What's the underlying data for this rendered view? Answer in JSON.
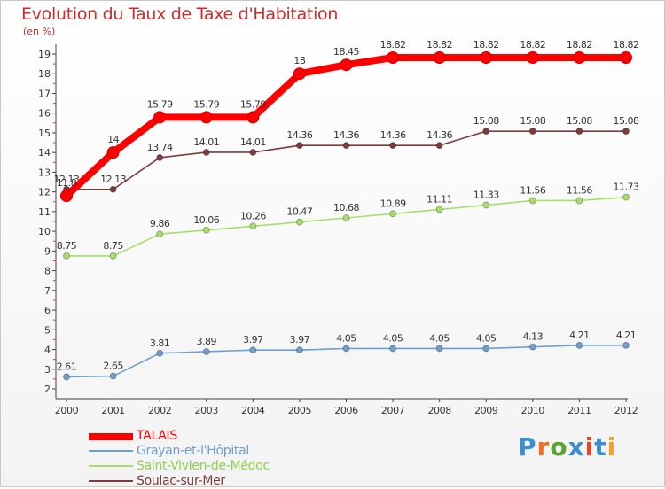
{
  "header": {
    "title": "Evolution du Taux de Taxe d'Habitation",
    "subtitle": "(en %)"
  },
  "logo": {
    "text": "Proxiti",
    "letter_colors": [
      "#3a8fd0",
      "#ef6f1f",
      "#5aa532",
      "#3a8fd0",
      "#e8432a",
      "#3a8fd0",
      "#f3a21b"
    ]
  },
  "chart_data": {
    "type": "line",
    "title": "Evolution du Taux de Taxe d'Habitation",
    "ylabel": "(en %)",
    "xlabel": "",
    "x": [
      "2000",
      "2001",
      "2002",
      "2003",
      "2004",
      "2005",
      "2006",
      "2007",
      "2008",
      "2009",
      "2010",
      "2011",
      "2012"
    ],
    "ylim": [
      2,
      19
    ],
    "yticks": [
      "2",
      "3",
      "4",
      "5",
      "6",
      "7",
      "8",
      "9",
      "10",
      "11",
      "12",
      "13",
      "14",
      "15",
      "16",
      "17",
      "18",
      "19"
    ],
    "grid": false,
    "legend_position": "bottom-left",
    "series": [
      {
        "name": "TALAIS",
        "color": "#ff0000",
        "values": [
          11.8,
          14,
          15.79,
          15.79,
          15.79,
          18,
          18.45,
          18.82,
          18.82,
          18.82,
          18.82,
          18.82,
          18.82
        ],
        "labels": [
          "11.8",
          "14",
          "15.79",
          "15.79",
          "15.79",
          "18",
          "18.45",
          "18.82",
          "18.82",
          "18.82",
          "18.82",
          "18.82",
          "18.82"
        ]
      },
      {
        "name": "Grayan-et-l'Hôpital",
        "color": "#6f9fcd",
        "values": [
          2.61,
          2.65,
          3.81,
          3.89,
          3.97,
          3.97,
          4.05,
          4.05,
          4.05,
          4.05,
          4.13,
          4.21,
          4.21
        ],
        "labels": [
          "2.61",
          "2.65",
          "3.81",
          "3.89",
          "3.97",
          "3.97",
          "4.05",
          "4.05",
          "4.05",
          "4.05",
          "4.13",
          "4.21",
          "4.21"
        ]
      },
      {
        "name": "Saint-Vivien-de-Médoc",
        "color": "#a6e06a",
        "values": [
          8.75,
          8.75,
          9.86,
          10.06,
          10.26,
          10.47,
          10.68,
          10.89,
          11.11,
          11.33,
          11.56,
          11.56,
          11.73
        ],
        "labels": [
          "8.75",
          "8.75",
          "9.86",
          "10.06",
          "10.26",
          "10.47",
          "10.68",
          "10.89",
          "11.11",
          "11.33",
          "11.56",
          "11.56",
          "11.73"
        ]
      },
      {
        "name": "Soulac-sur-Mer",
        "color": "#7d3b3b",
        "values": [
          12.13,
          12.13,
          13.74,
          14.01,
          14.01,
          14.36,
          14.36,
          14.36,
          14.36,
          15.08,
          15.08,
          15.08,
          15.08
        ],
        "labels": [
          "12.13",
          "12.13",
          "13.74",
          "14.01",
          "14.01",
          "14.36",
          "14.36",
          "14.36",
          "14.36",
          "15.08",
          "15.08",
          "15.08",
          "15.08"
        ]
      }
    ]
  }
}
